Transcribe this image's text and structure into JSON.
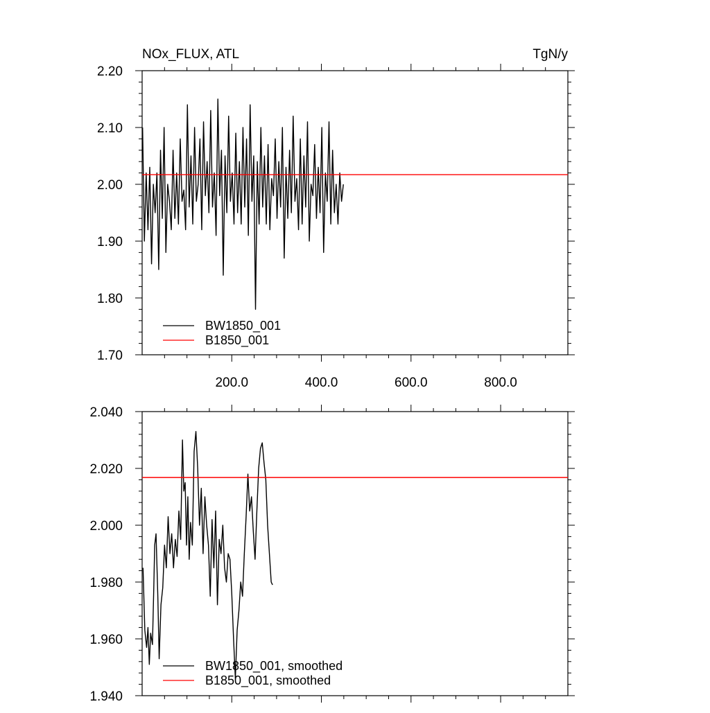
{
  "chart_data": [
    {
      "type": "line",
      "title_left": "NOx_FLUX, ATL",
      "title_right": "TgN/y",
      "xlabel": "",
      "ylabel": "",
      "xlim": [
        0,
        950
      ],
      "ylim": [
        1.7,
        2.2
      ],
      "xticks": [
        200,
        400,
        600,
        800
      ],
      "xtick_labels": [
        "200.0",
        "400.0",
        "600.0",
        "800.0"
      ],
      "yticks": [
        1.7,
        1.8,
        1.9,
        2.0,
        2.1,
        2.2
      ],
      "ytick_labels": [
        "1.70",
        "1.80",
        "1.90",
        "2.00",
        "2.10",
        "2.20"
      ],
      "grid": false,
      "legend_position": "bottom-left",
      "series": [
        {
          "name": "BW1850_001",
          "color": "#000000",
          "x_start": 1,
          "x_step": 4,
          "values": [
            2.1,
            1.9,
            2.02,
            1.92,
            2.03,
            1.86,
            2.0,
            1.95,
            2.02,
            1.85,
            2.06,
            1.94,
            2.1,
            1.88,
            2.0,
            1.97,
            1.92,
            2.06,
            1.94,
            2.02,
            1.93,
            2.08,
            1.97,
            1.99,
            1.92,
            2.14,
            1.96,
            2.05,
            1.93,
            2.1,
            1.97,
            2.0,
            2.08,
            1.92,
            2.11,
            1.98,
            2.04,
            1.95,
            2.13,
            1.96,
            2.02,
            1.91,
            2.15,
            1.98,
            2.06,
            1.84,
            2.05,
            1.95,
            2.12,
            1.97,
            2.02,
            1.93,
            2.09,
            1.95,
            2.04,
            1.93,
            2.1,
            1.96,
            2.08,
            1.91,
            2.14,
            1.97,
            2.05,
            1.78,
            2.04,
            1.93,
            2.1,
            1.96,
            2.05,
            1.93,
            2.07,
            1.92,
            2.01,
            1.98,
            2.08,
            1.94,
            2.04,
            1.96,
            2.1,
            1.87,
            2.03,
            1.94,
            2.06,
            1.95,
            2.12,
            1.97,
            2.01,
            1.92,
            2.08,
            1.93,
            2.05,
            1.96,
            2.11,
            1.9,
            2.0,
            1.98,
            2.07,
            1.94,
            2.03,
            1.95,
            2.1,
            1.88,
            2.02,
            1.97,
            2.11,
            1.93,
            2.06,
            1.95,
            2.0,
            1.93,
            2.02,
            1.97,
            2.0
          ]
        },
        {
          "name": "B1850_001",
          "color": "#ff0000",
          "x_start": 0,
          "x_step": 950,
          "values": [
            2.017,
            2.017
          ]
        }
      ]
    },
    {
      "type": "line",
      "xlabel": "",
      "ylabel": "",
      "xlim": [
        0,
        950
      ],
      "ylim": [
        1.94,
        2.04
      ],
      "xticks": [
        200,
        400,
        600,
        800
      ],
      "yticks": [
        1.94,
        1.96,
        1.98,
        2.0,
        2.02,
        2.04
      ],
      "ytick_labels": [
        "1.940",
        "1.960",
        "1.980",
        "2.000",
        "2.020",
        "2.040"
      ],
      "grid": false,
      "legend_position": "bottom-left",
      "series": [
        {
          "name": "BW1850_001, smoothed",
          "color": "#000000",
          "x": [
            2,
            6,
            10,
            13,
            16,
            19,
            23,
            26,
            28,
            31,
            35,
            38,
            42,
            46,
            50,
            54,
            58,
            62,
            66,
            70,
            74,
            78,
            82,
            86,
            90,
            93,
            96,
            99,
            102,
            105,
            108,
            112,
            116,
            120,
            124,
            128,
            132,
            136,
            140,
            144,
            148,
            152,
            156,
            160,
            164,
            168,
            172,
            176,
            180,
            184,
            188,
            192,
            196,
            200,
            204,
            208,
            212,
            216,
            220,
            224,
            228,
            232,
            236,
            240,
            244,
            248,
            252,
            256,
            260,
            264,
            268,
            272,
            276,
            280,
            284,
            288,
            291
          ],
          "values": [
            1.985,
            1.963,
            1.957,
            1.964,
            1.951,
            1.962,
            1.958,
            1.978,
            1.993,
            1.997,
            1.975,
            1.953,
            1.972,
            1.978,
            1.993,
            1.985,
            2.003,
            1.99,
            1.997,
            1.985,
            1.995,
            1.989,
            2.005,
            1.995,
            2.03,
            2.012,
            2.015,
            1.993,
            2.01,
            1.988,
            2.001,
            1.993,
            2.026,
            2.033,
            2.02,
            2.0,
            2.013,
            1.99,
            2.01,
            2.0,
            1.993,
            1.975,
            2.002,
            1.985,
            2.005,
            1.972,
            1.995,
            1.99,
            2.0,
            1.985,
            1.98,
            1.99,
            1.988,
            1.976,
            1.96,
            1.946,
            1.963,
            1.97,
            1.98,
            1.975,
            1.99,
            2.003,
            2.018,
            2.005,
            2.01,
            1.998,
            1.988,
            2.005,
            2.02,
            2.027,
            2.029,
            2.022,
            2.016,
            2.0,
            1.99,
            1.98,
            1.979
          ]
        },
        {
          "name": "B1850_001, smoothed",
          "color": "#ff0000",
          "x_start": 0,
          "x_step": 950,
          "values": [
            2.0168,
            2.0168
          ]
        }
      ]
    }
  ]
}
